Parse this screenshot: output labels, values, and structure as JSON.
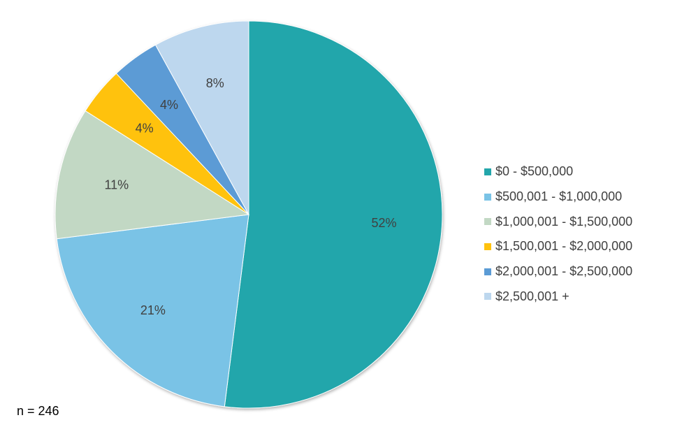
{
  "chart_data": {
    "type": "pie",
    "categories": [
      "$0 - $500,000",
      "$500,001 - $1,000,000",
      "$1,000,001 - $1,500,000",
      "$1,500,001 - $2,000,000",
      "$2,000,001 - $2,500,000",
      "$2,500,001 +"
    ],
    "values": [
      52,
      21,
      11,
      4,
      4,
      8
    ],
    "labels": [
      "52%",
      "21%",
      "11%",
      "4%",
      "4%",
      "8%"
    ],
    "colors": [
      "#23a6ab",
      "#7ac3e6",
      "#c2d8c4",
      "#ffc20e",
      "#5b9bd5",
      "#bdd7ee"
    ],
    "start": "12 o'clock, clockwise",
    "legend_position": "right",
    "note": "n = 246"
  }
}
